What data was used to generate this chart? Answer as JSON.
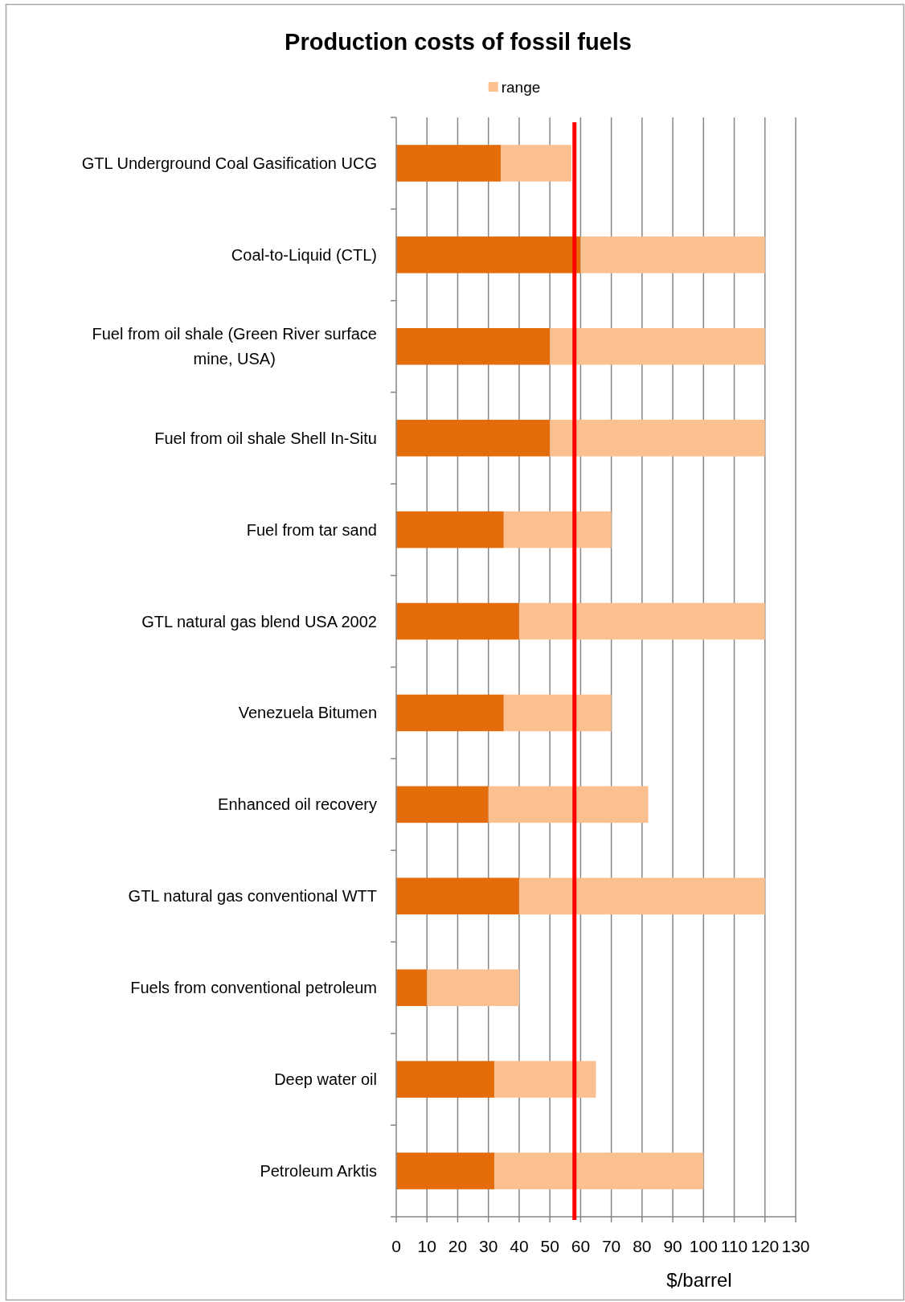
{
  "chart_data": {
    "type": "bar",
    "orientation": "horizontal",
    "stacked": true,
    "title": "Production costs of fossil fuels",
    "xlabel": "$/barrel",
    "categories": [
      "GTL Underground Coal Gasification UCG",
      "Coal-to-Liquid (CTL)",
      "Fuel from oil shale (Green River surface mine, USA)",
      "Fuel from oil shale Shell In-Situ",
      "Fuel from tar sand",
      "GTL natural gas blend USA 2002",
      "Venezuela Bitumen",
      "Enhanced oil recovery",
      "GTL natural gas conventional WTT",
      "Fuels from conventional petroleum",
      "Deep water oil",
      "Petroleum Arktis"
    ],
    "series": [
      {
        "color": "#e46c0a",
        "values": [
          34,
          60,
          50,
          50,
          35,
          40,
          35,
          30,
          40,
          10,
          32,
          32
        ]
      },
      {
        "name": "range",
        "color": "#fac090",
        "values": [
          23,
          60,
          70,
          70,
          35,
          80,
          35,
          52,
          80,
          30,
          33,
          68
        ]
      }
    ],
    "xlim": [
      0,
      130
    ],
    "xticks": [
      0,
      10,
      20,
      30,
      40,
      50,
      60,
      70,
      80,
      90,
      100,
      110,
      120,
      130
    ],
    "ref_lines": [
      {
        "axis": "x",
        "value": 58,
        "color": "#ff0000"
      }
    ],
    "grid": "x",
    "legend": "top"
  }
}
